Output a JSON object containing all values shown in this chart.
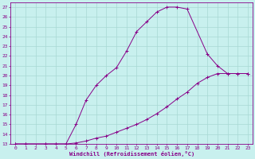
{
  "xlabel": "Windchill (Refroidissement éolien,°C)",
  "background_color": "#c8f0ee",
  "grid_color": "#a8d8d4",
  "line_color": "#880088",
  "xlim": [
    -0.5,
    23.5
  ],
  "ylim": [
    13,
    27.5
  ],
  "xticks": [
    0,
    1,
    2,
    3,
    4,
    5,
    6,
    7,
    8,
    9,
    10,
    11,
    12,
    13,
    14,
    15,
    16,
    17,
    18,
    19,
    20,
    21,
    22,
    23
  ],
  "yticks": [
    13,
    14,
    15,
    16,
    17,
    18,
    19,
    20,
    21,
    22,
    23,
    24,
    25,
    26,
    27
  ],
  "curve1_x": [
    0,
    1,
    3,
    4,
    5,
    6,
    7,
    8,
    9,
    10,
    11,
    12,
    13,
    14,
    15,
    16,
    17,
    19,
    20,
    21,
    22,
    23
  ],
  "curve1_y": [
    13,
    13,
    13,
    13,
    13,
    15,
    17.5,
    19,
    20,
    20.8,
    22.5,
    24.5,
    25.5,
    26.5,
    27,
    27,
    26.8,
    22.2,
    21.0,
    20.2,
    20.2,
    20.2
  ],
  "curve2_x": [
    0,
    1,
    3,
    4,
    5,
    6,
    7,
    8,
    9,
    10,
    11,
    12,
    13,
    14,
    15,
    16,
    17,
    18,
    19,
    20,
    21,
    22,
    23
  ],
  "curve2_y": [
    13,
    13,
    13,
    13,
    13,
    13.1,
    13.3,
    13.6,
    13.8,
    14.2,
    14.6,
    15.0,
    15.5,
    16.1,
    16.8,
    17.6,
    18.3,
    19.2,
    19.8,
    20.2,
    20.2,
    20.2,
    20.2
  ]
}
